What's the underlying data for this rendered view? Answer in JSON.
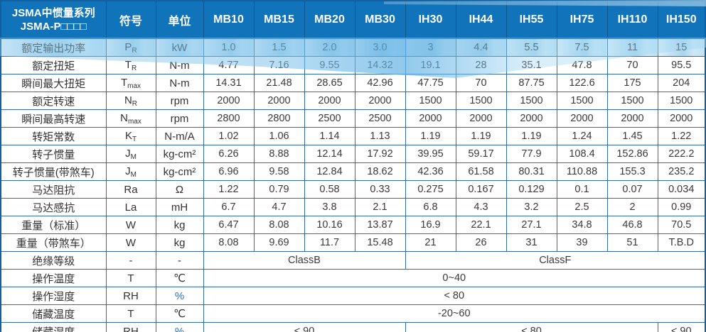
{
  "header": {
    "title_line1": "JSMA中惯量系列",
    "title_line2": "JSMA-P□□□□",
    "symbol_col": "符号",
    "unit_col": "单位",
    "models": [
      "MB10",
      "MB15",
      "MB20",
      "MB30",
      "IH30",
      "IH44",
      "IH55",
      "IH75",
      "IH110",
      "IH150"
    ]
  },
  "rows": [
    {
      "label": "额定输出功率",
      "symbol": "P",
      "sub": "R",
      "unit": "kW",
      "values": [
        "1.0",
        "1.5",
        "2.0",
        "3.0",
        "3",
        "4.4",
        "5.5",
        "7.5",
        "11",
        "15"
      ]
    },
    {
      "label": "额定扭矩",
      "symbol": "T",
      "sub": "R",
      "unit": "N-m",
      "values": [
        "4.77",
        "7.16",
        "9.55",
        "14.32",
        "19.1",
        "28",
        "35.1",
        "47.8",
        "70",
        "95.5"
      ]
    },
    {
      "label": "瞬间最大扭矩",
      "symbol": "T",
      "sub": "max",
      "unit": "N-m",
      "values": [
        "14.31",
        "21.48",
        "28.65",
        "42.96",
        "47.75",
        "70",
        "87.75",
        "122.6",
        "175",
        "204"
      ]
    },
    {
      "label": "额定转速",
      "symbol": "N",
      "sub": "R",
      "unit": "rpm",
      "values": [
        "2000",
        "2000",
        "2000",
        "2000",
        "1500",
        "1500",
        "1500",
        "1500",
        "1500",
        "1500"
      ]
    },
    {
      "label": "瞬间最高转速",
      "symbol": "N",
      "sub": "max",
      "unit": "rpm",
      "values": [
        "2800",
        "2800",
        "2500",
        "2500",
        "2000",
        "2000",
        "2000",
        "2000",
        "2000",
        "2000"
      ]
    },
    {
      "label": "转矩常数",
      "symbol": "K",
      "sub": "T",
      "unit": "N-m/A",
      "values": [
        "1.02",
        "1.06",
        "1.14",
        "1.13",
        "1.19",
        "1.19",
        "1.19",
        "1.24",
        "1.45",
        "1.22"
      ]
    },
    {
      "label": "转子惯量",
      "symbol": "J",
      "sub": "M",
      "unit": "kg-cm²",
      "values": [
        "6.26",
        "8.88",
        "12.14",
        "17.92",
        "39.95",
        "59.17",
        "77.9",
        "108.4",
        "152.86",
        "222.2"
      ]
    },
    {
      "label": "转子惯量(带煞车)",
      "symbol": "J",
      "sub": "M",
      "unit": "kg-cm²",
      "values": [
        "6.96",
        "9.58",
        "12.84",
        "18.62",
        "42.36",
        "61.58",
        "80.31",
        "110.88",
        "155.3",
        "235.2"
      ]
    },
    {
      "label": "马达阻抗",
      "symbol": "Ra",
      "sub": "",
      "unit": "Ω",
      "values": [
        "1.22",
        "0.79",
        "0.58",
        "0.33",
        "0.275",
        "0.167",
        "0.129",
        "0.1",
        "0.07",
        "0.034"
      ]
    },
    {
      "label": "马达感抗",
      "symbol": "La",
      "sub": "",
      "unit": "mH",
      "values": [
        "6.7",
        "4.7",
        "3.8",
        "2.1",
        "6.8",
        "4.3",
        "3.2",
        "2.5",
        "2",
        "0.99"
      ]
    },
    {
      "label": "重量（标准）",
      "symbol": "W",
      "sub": "",
      "unit": "kg",
      "values": [
        "6.47",
        "8.08",
        "10.16",
        "13.87",
        "16.9",
        "22.1",
        "27.1",
        "34.8",
        "46.8",
        "70.5"
      ]
    },
    {
      "label": "重量（带煞车）",
      "symbol": "W",
      "sub": "",
      "unit": "kg",
      "values": [
        "8.08",
        "9.69",
        "11.7",
        "15.48",
        "21",
        "26",
        "31",
        "39",
        "51",
        "T.B.D"
      ]
    },
    {
      "label": "绝缘等级",
      "symbol": "-",
      "sub": "",
      "unit": "-",
      "cells": [
        {
          "text": "ClassB",
          "span": 4
        },
        {
          "text": "ClassF",
          "span": 6
        }
      ]
    },
    {
      "label": "操作温度",
      "symbol": "T",
      "sub": "",
      "unit": "℃",
      "cells": [
        {
          "text": "0~40",
          "span": 10
        }
      ]
    },
    {
      "label": "操作湿度",
      "symbol": "RH",
      "sub": "",
      "unit": "%",
      "cells": [
        {
          "text": "< 80",
          "span": 10
        }
      ]
    },
    {
      "label": "储藏温度",
      "symbol": "T",
      "sub": "",
      "unit": "℃",
      "cells": [
        {
          "text": "-20~60",
          "span": 10
        }
      ]
    },
    {
      "label": "储藏湿度",
      "symbol": "RH",
      "sub": "",
      "unit": "%",
      "cells": [
        {
          "text": "< 90",
          "span": 4
        },
        {
          "text": "< 80",
          "span": 5
        },
        {
          "text": "< 90",
          "span": 1
        }
      ]
    }
  ],
  "colors": {
    "header_bg": "#1173ba",
    "border": "#2e6cae",
    "outer_border": "#14609e",
    "wave_blue": "#a9d6ef",
    "text": "#3a3a3a",
    "header_text": "#ffffff"
  }
}
